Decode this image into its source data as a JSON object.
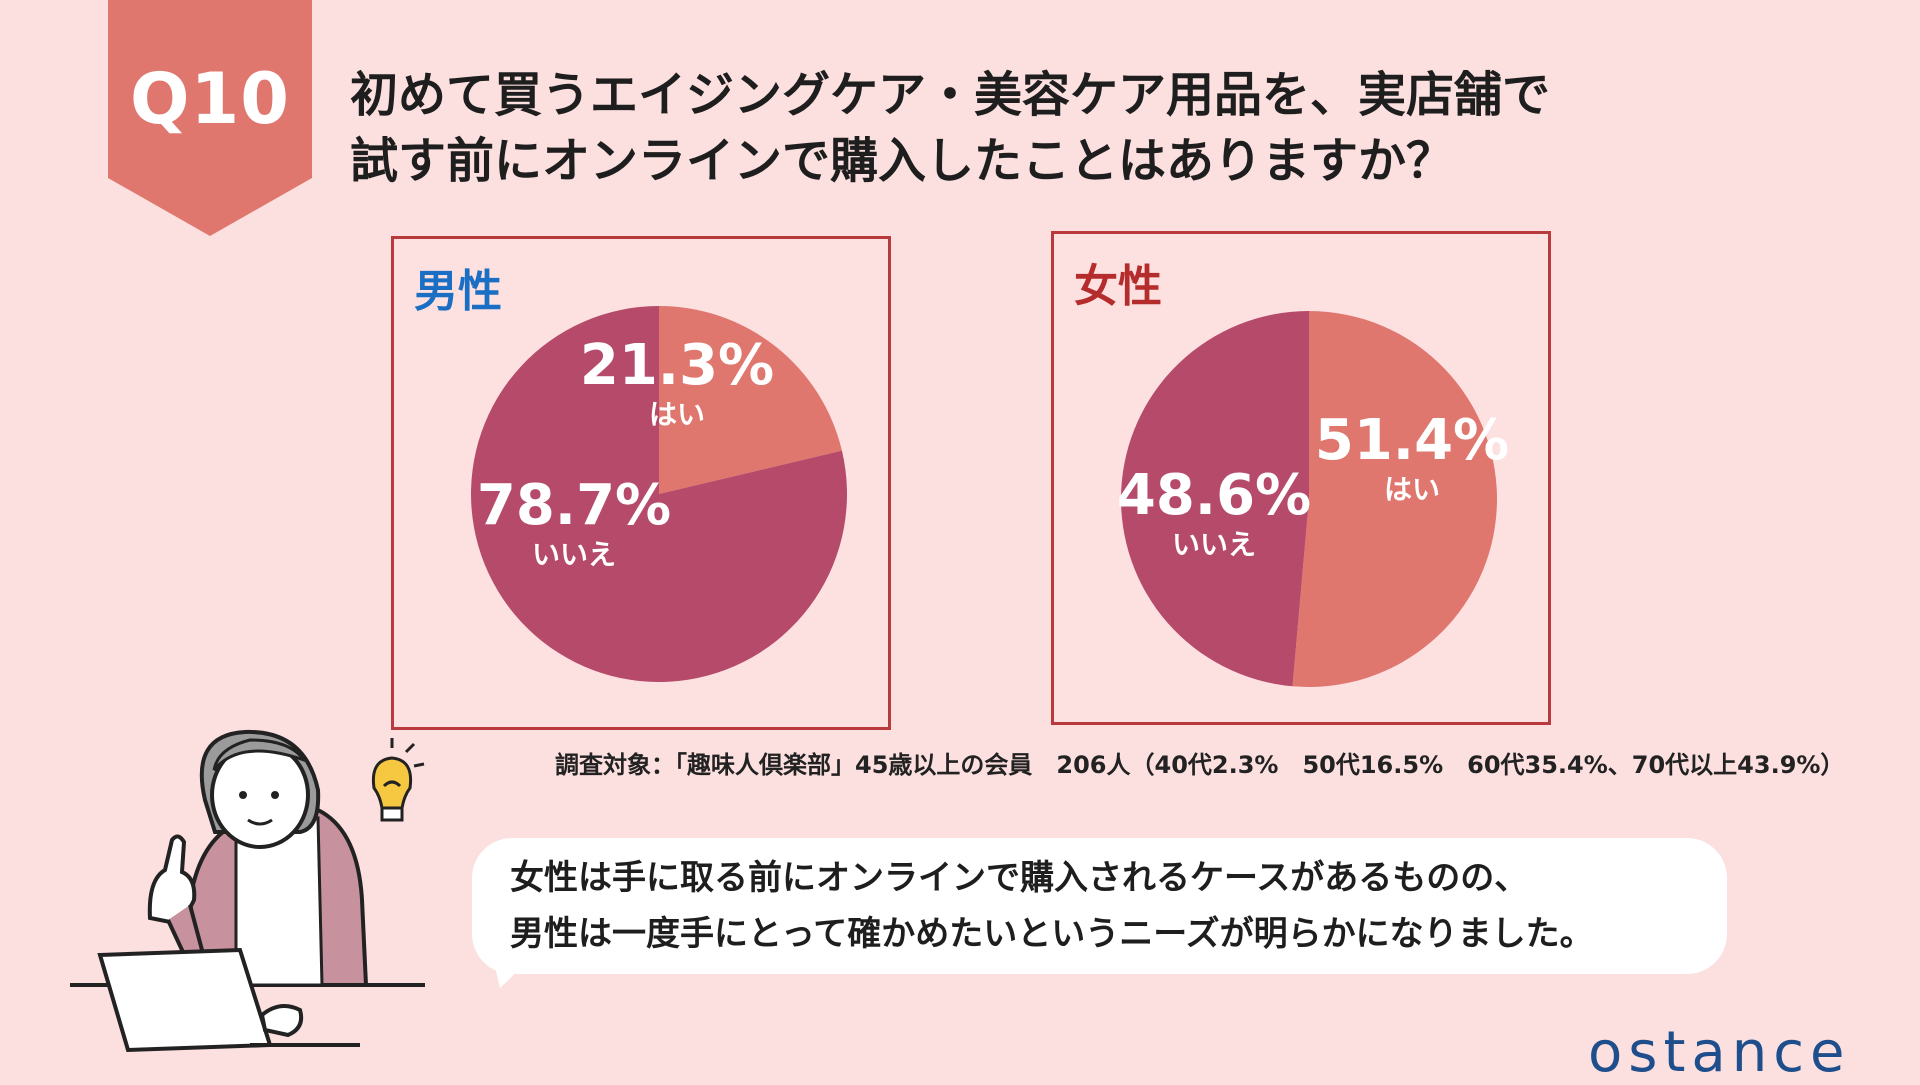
{
  "badge": {
    "label": "Q10",
    "color": "#e0776f"
  },
  "title": {
    "line1": "初めて買うエイジングケア・美容ケア用品を、実店舗で",
    "line2": "試す前にオンラインで購入したことはありますか？"
  },
  "colors": {
    "yes": "#e0776f",
    "no": "#b64a6a",
    "border": "#b93a3d",
    "background": "#fcdfdf"
  },
  "chart_data": [
    {
      "type": "pie",
      "title": "男性",
      "slices": [
        {
          "label": "はい",
          "value": 21.3,
          "display": "21.3%"
        },
        {
          "label": "いいえ",
          "value": 78.7,
          "display": "78.7%"
        }
      ]
    },
    {
      "type": "pie",
      "title": "女性",
      "slices": [
        {
          "label": "はい",
          "value": 51.4,
          "display": "51.4%"
        },
        {
          "label": "いいえ",
          "value": 48.6,
          "display": "48.6%"
        }
      ]
    }
  ],
  "survey_note": "調査対象：「趣味人倶楽部」45歳以上の会員　206人（40代2.3%　50代16.5%　60代35.4%、70代以上43.9%）",
  "bubble": {
    "line1": "女性は手に取る前にオンラインで購入されるケースがあるものの、",
    "line2": "男性は一度手にとって確かめたいというニーズが明らかになりました。"
  },
  "logo": "ostance"
}
